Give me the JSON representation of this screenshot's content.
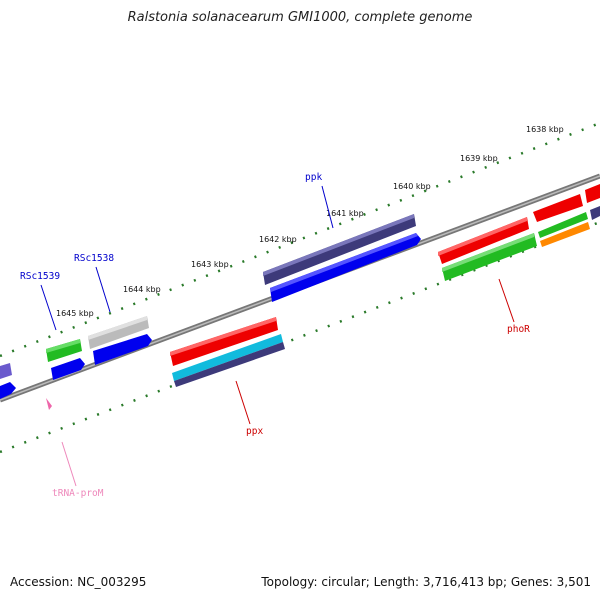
{
  "title": "Ralstonia solanacearum GMI1000, complete genome",
  "ticks": [
    "1638 kbp",
    "1639 kbp",
    "1640 kbp",
    "1641 kbp",
    "1642 kbp",
    "1643 kbp",
    "1644 kbp",
    "1645 kbp"
  ],
  "genes": {
    "ppk": "ppk",
    "rsc1538": "RSc1538",
    "rsc1539": "RSc1539",
    "ppx": "ppx",
    "phor": "phoR",
    "trna": "tRNA-proM"
  },
  "colors": {
    "label_blue": "#0000cc",
    "label_red": "#cc0000",
    "label_pink": "#ee88bb",
    "backbone": "#888888",
    "tick_green": "#2a7a2a"
  },
  "footer": {
    "accession": "Accession: NC_003295",
    "stats": "Topology: circular; Length: 3,716,413 bp; Genes: 3,501"
  }
}
